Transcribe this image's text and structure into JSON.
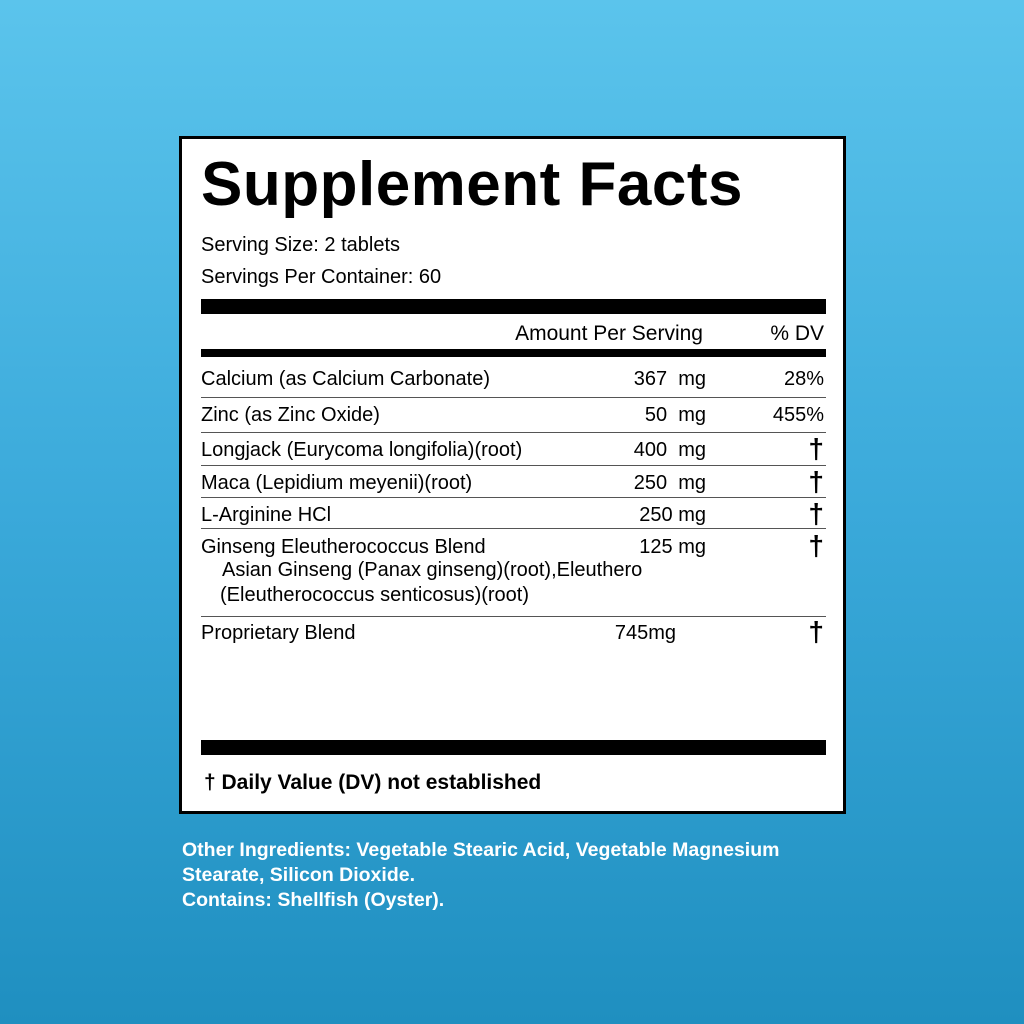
{
  "title": "Supplement Facts",
  "serving_size": "Serving Size: 2 tablets",
  "servings_per_container": "Servings Per Container: 60",
  "header": {
    "amount": "Amount Per Serving",
    "dv": "% DV"
  },
  "rows": [
    {
      "name": "Calcium (as Calcium Carbonate)",
      "amount": "367  mg",
      "dv": "28%"
    },
    {
      "name": "Zinc (as Zinc Oxide)",
      "amount": "50  mg",
      "dv": "455%"
    },
    {
      "name": "Longjack (Eurycoma longifolia)(root)",
      "amount": "400  mg",
      "dv": "†"
    },
    {
      "name": "Maca (Lepidium meyenii)(root)",
      "amount": "250  mg",
      "dv": "†"
    },
    {
      "name": "L-Arginine HCl",
      "amount": "250 mg",
      "dv": "†"
    },
    {
      "name": "Ginseng Eleutherococcus Blend",
      "amount": "125 mg",
      "dv": "†",
      "sub": [
        "Asian Ginseng (Panax ginseng)(root),Eleuthero",
        "(Eleutherococcus senticosus)(root)"
      ]
    },
    {
      "name": "Proprietary Blend",
      "amount": "745mg",
      "dv": "†"
    }
  ],
  "footnote": "† Daily Value (DV) not established",
  "other": {
    "line1": "Other Ingredients: Vegetable Stearic Acid, Vegetable Magnesium",
    "line2": "Stearate, Silicon Dioxide.",
    "line3": "Contains: Shellfish (Oyster)."
  }
}
